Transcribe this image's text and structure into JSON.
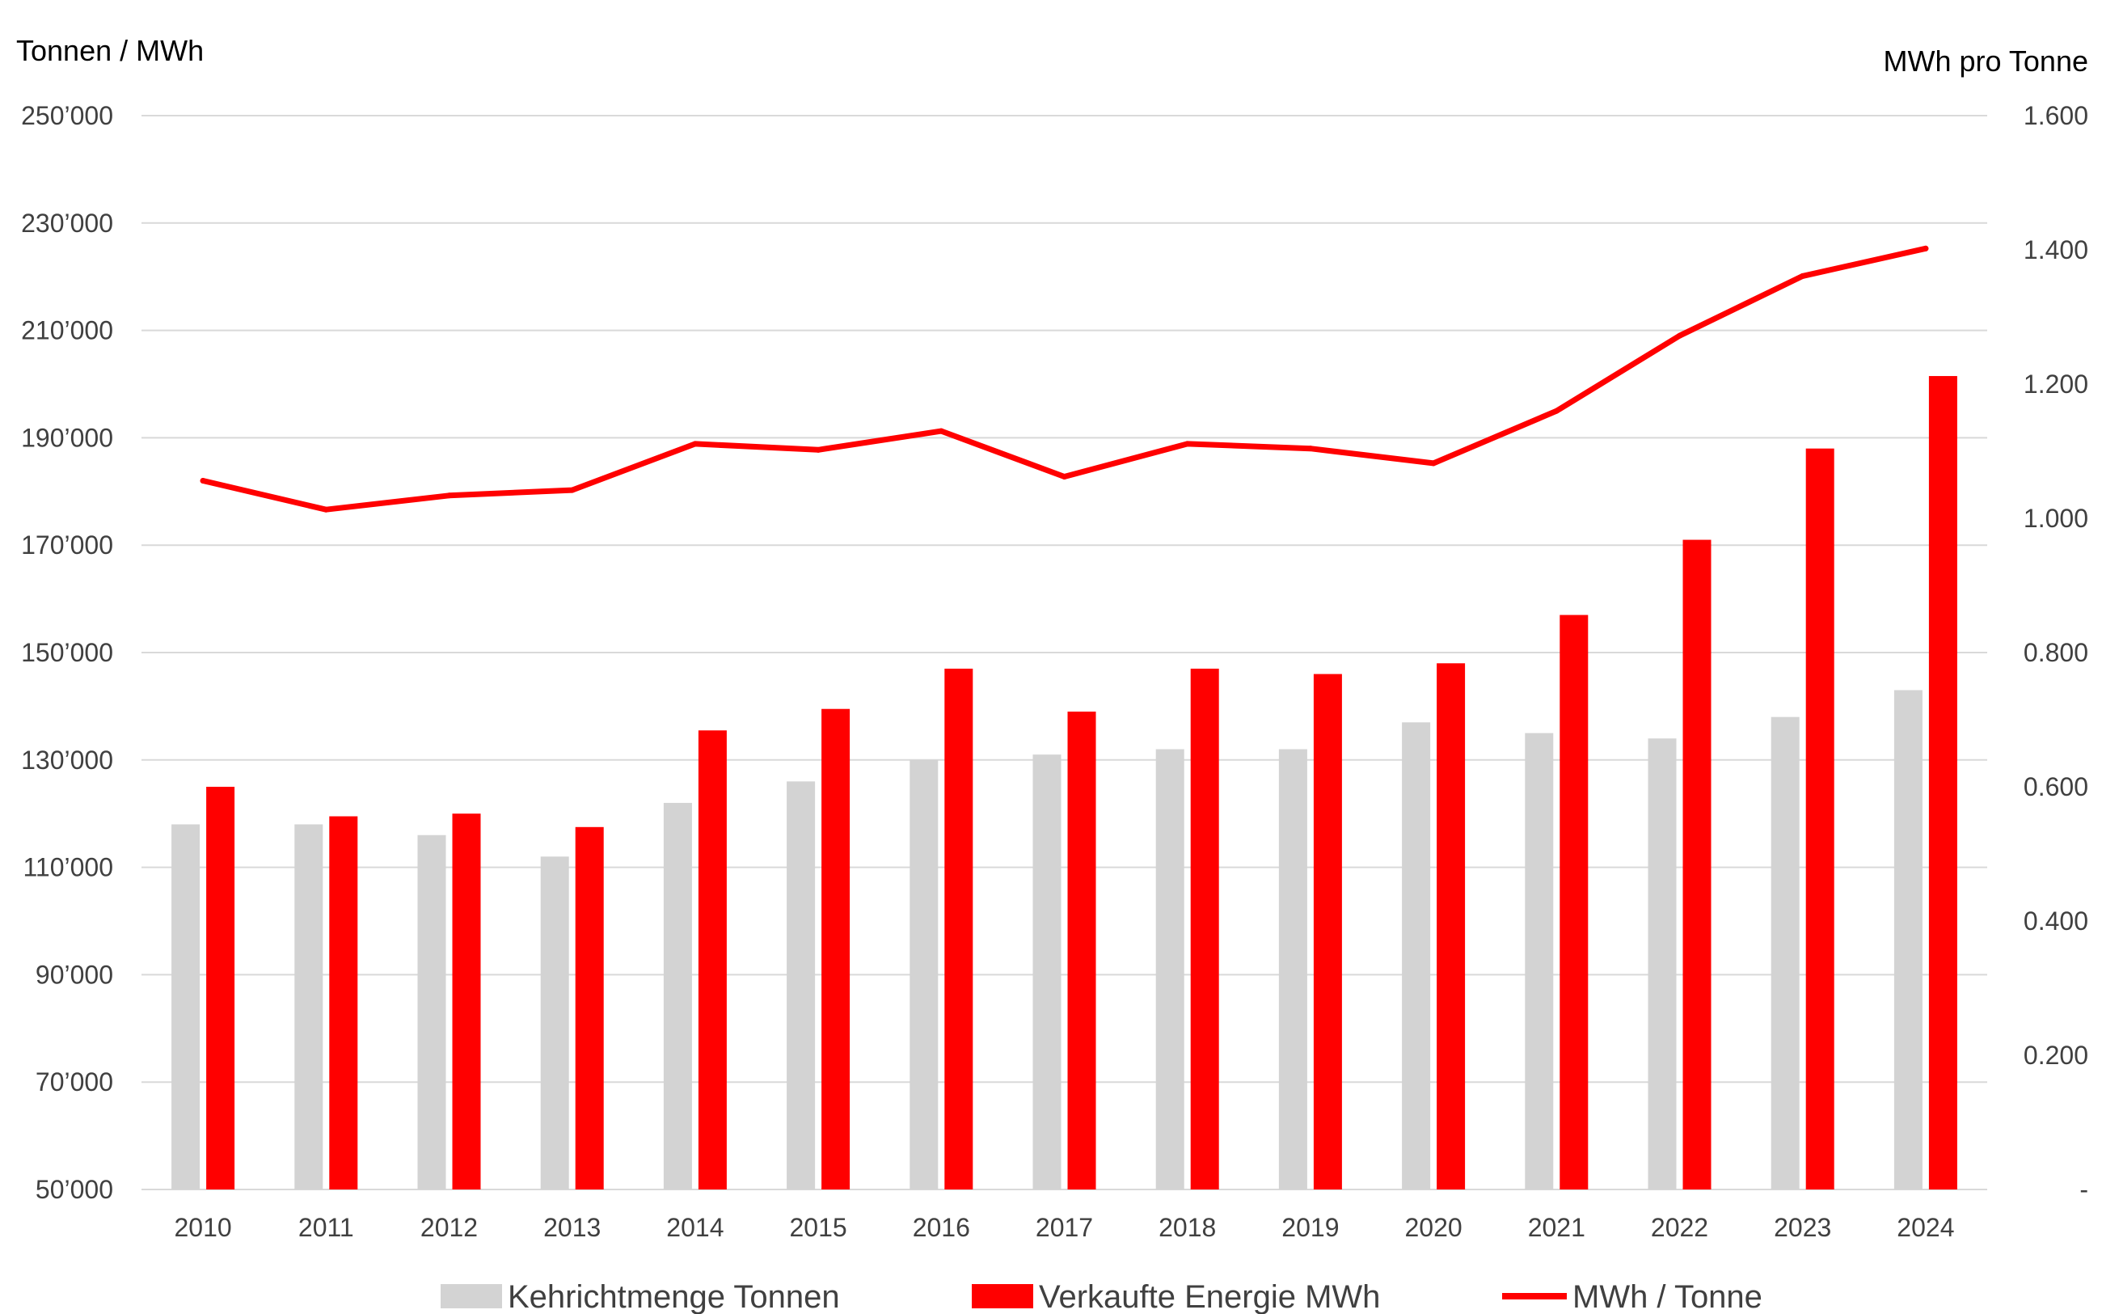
{
  "chart_data": {
    "type": "bar",
    "categories": [
      "2010",
      "2011",
      "2012",
      "2013",
      "2014",
      "2015",
      "2016",
      "2017",
      "2018",
      "2019",
      "2020",
      "2021",
      "2022",
      "2023",
      "2024"
    ],
    "series": [
      {
        "name": "Kehrichtmenge Tonnen",
        "kind": "bar",
        "axis": "left",
        "color": "#d3d3d3",
        "values": [
          118000,
          118000,
          116000,
          112000,
          122000,
          126000,
          130000,
          131000,
          132000,
          132000,
          137000,
          135000,
          134000,
          138000,
          143000
        ]
      },
      {
        "name": "Verkaufte Energie MWh",
        "kind": "bar",
        "axis": "left",
        "color": "#ff0000",
        "values": [
          125000,
          119500,
          120000,
          117500,
          135500,
          139500,
          147000,
          139000,
          147000,
          146000,
          148000,
          157000,
          171000,
          188000,
          201500
        ]
      },
      {
        "name": "MWh / Tonne",
        "kind": "line",
        "axis": "right",
        "color": "#ff0000",
        "values": [
          1.056,
          1.013,
          1.034,
          1.042,
          1.111,
          1.102,
          1.13,
          1.062,
          1.111,
          1.104,
          1.082,
          1.16,
          1.272,
          1.361,
          1.402
        ]
      }
    ],
    "ylabel": "Tonnen / MWh",
    "y2label": "MWh pro Tonne",
    "ylim": [
      50000,
      250000
    ],
    "y2lim": [
      0,
      1.6
    ],
    "yticks": [
      50000,
      70000,
      90000,
      110000,
      130000,
      150000,
      170000,
      190000,
      210000,
      230000,
      250000
    ],
    "ytick_labels": [
      "50’000",
      "70’000",
      "90’000",
      "110’000",
      "130’000",
      "150’000",
      "170’000",
      "190’000",
      "210’000",
      "230’000",
      "250’000"
    ],
    "y2ticks": [
      0,
      0.2,
      0.4,
      0.6,
      0.8,
      1.0,
      1.2,
      1.4,
      1.6
    ],
    "y2tick_labels": [
      "-",
      "0.200",
      "0.400",
      "0.600",
      "0.800",
      "1.000",
      "1.200",
      "1.400",
      "1.600"
    ],
    "grid": true,
    "legend_position": "bottom",
    "grid_color": "#d9d9d9"
  }
}
